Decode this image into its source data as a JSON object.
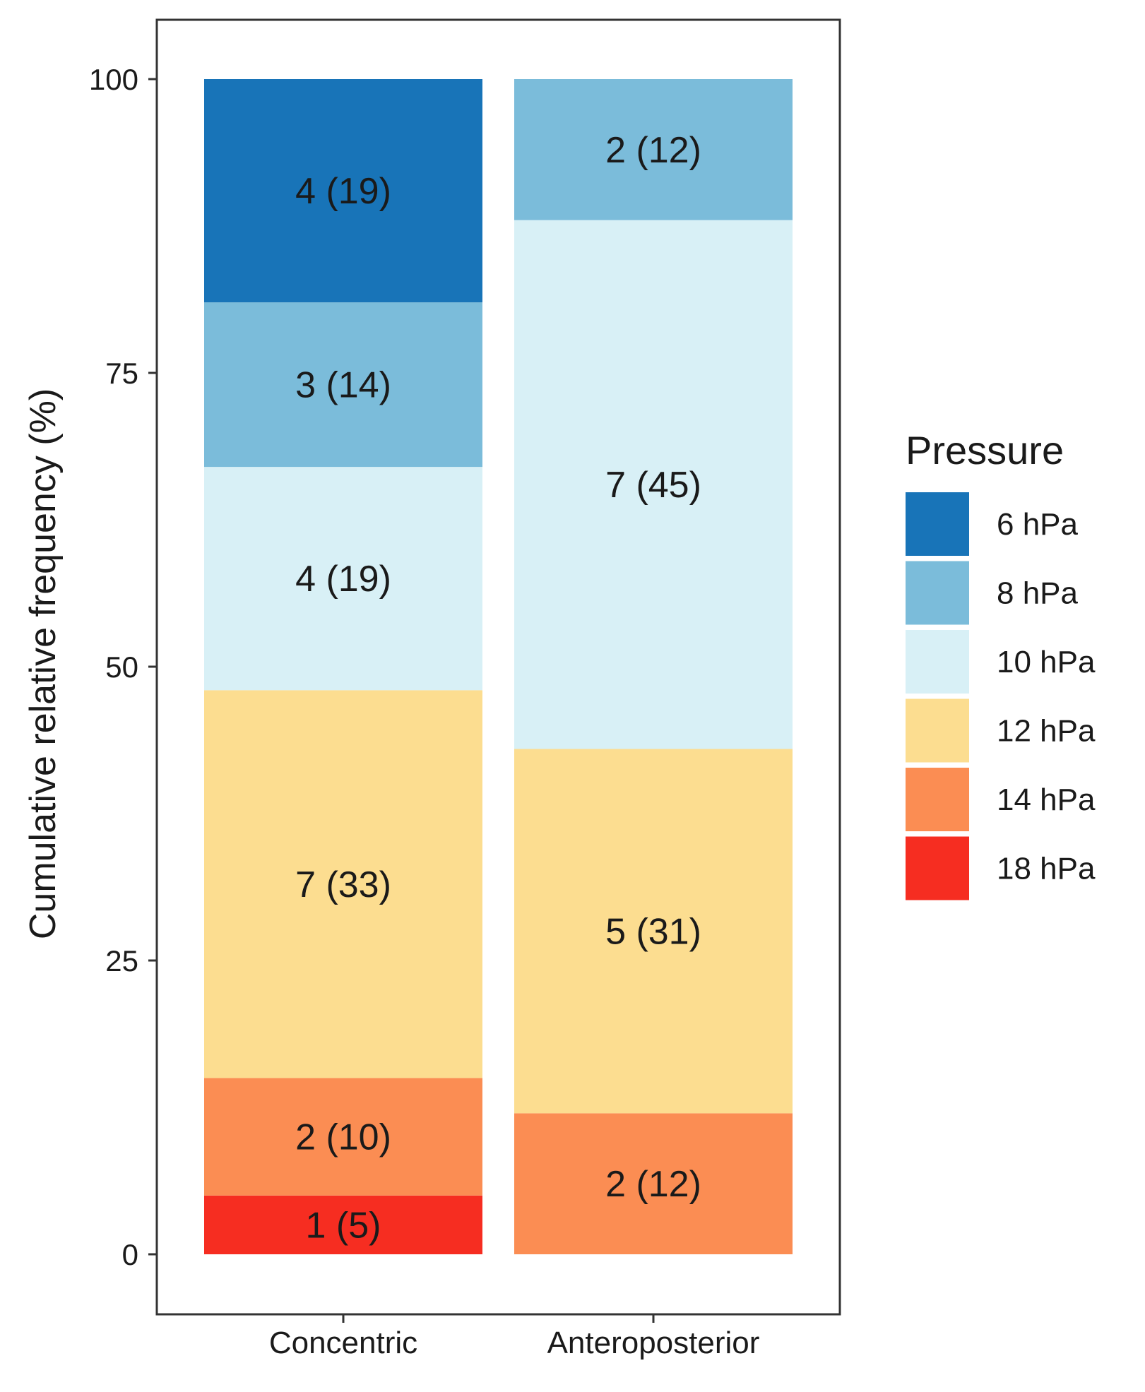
{
  "chart_data": {
    "type": "bar",
    "stacked": true,
    "ylabel": "Cumulative relative frequency (%)",
    "xlabel": "",
    "ylim": [
      0,
      100
    ],
    "y_ticks": [
      0,
      25,
      50,
      75,
      100
    ],
    "categories": [
      "Concentric",
      "Anteroposterior"
    ],
    "legend": {
      "title": "Pressure",
      "position": "right",
      "entries": [
        {
          "name": "6 hPa",
          "color": "#1874b8"
        },
        {
          "name": "8 hPa",
          "color": "#7bbcda"
        },
        {
          "name": "10 hPa",
          "color": "#d8f0f6"
        },
        {
          "name": "12 hPa",
          "color": "#fcdd90"
        },
        {
          "name": "14 hPa",
          "color": "#fb8d53"
        },
        {
          "name": "18 hPa",
          "color": "#f62d21"
        }
      ]
    },
    "series": [
      {
        "name": "18 hPa",
        "color": "#f62d21",
        "values": [
          5,
          0
        ],
        "labels": [
          "1 (5)",
          ""
        ]
      },
      {
        "name": "14 hPa",
        "color": "#fb8d53",
        "values": [
          10,
          12
        ],
        "labels": [
          "2 (10)",
          "2 (12)"
        ]
      },
      {
        "name": "12 hPa",
        "color": "#fcdd90",
        "values": [
          33,
          31
        ],
        "labels": [
          "7 (33)",
          "5 (31)"
        ]
      },
      {
        "name": "10 hPa",
        "color": "#d8f0f6",
        "values": [
          19,
          45
        ],
        "labels": [
          "4 (19)",
          "7 (45)"
        ]
      },
      {
        "name": "8 hPa",
        "color": "#7bbcda",
        "values": [
          14,
          12
        ],
        "labels": [
          "3 (14)",
          "2 (12)"
        ]
      },
      {
        "name": "6 hPa",
        "color": "#1874b8",
        "values": [
          19,
          0
        ],
        "labels": [
          "4 (19)",
          ""
        ]
      }
    ]
  }
}
